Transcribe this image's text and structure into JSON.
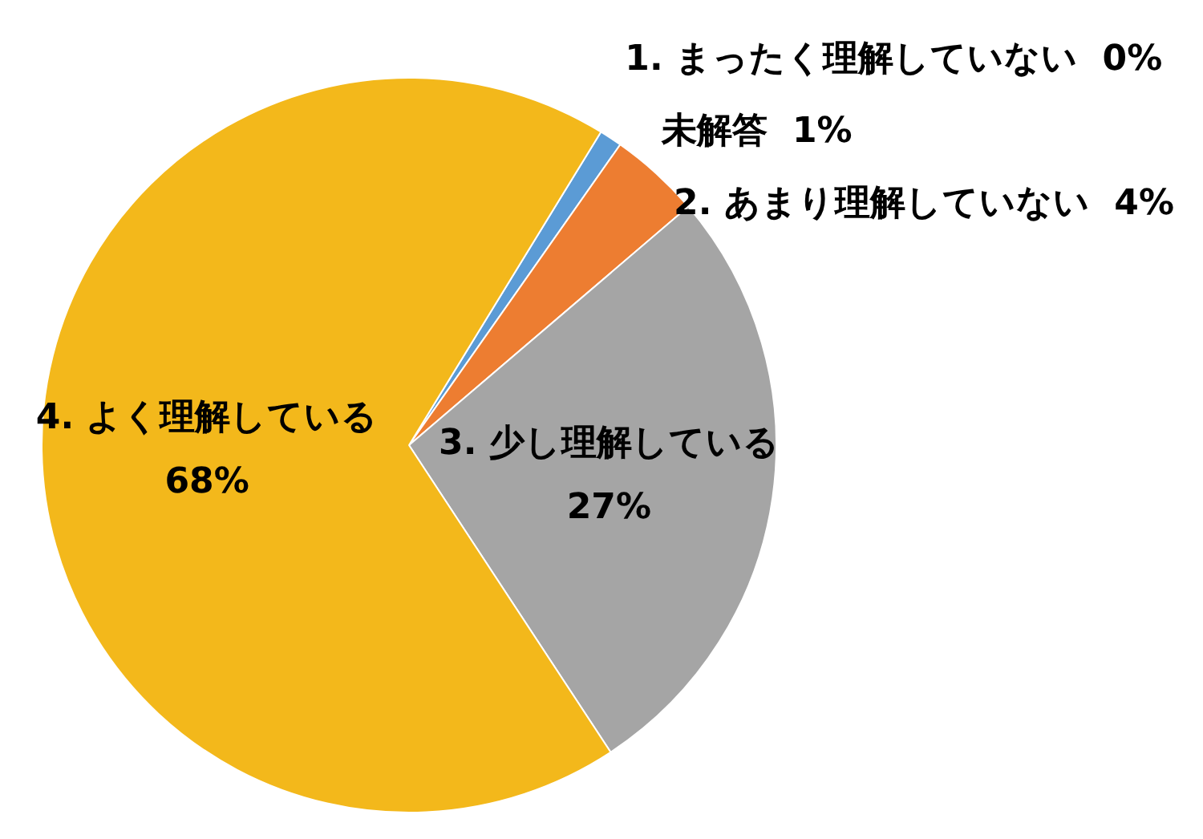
{
  "chart_data": {
    "type": "pie",
    "categories": [
      "1. まったく理解していない",
      "未解答",
      "2. あまり理解していない",
      "3. 少し理解している",
      "4. よく理解している"
    ],
    "values": [
      0,
      1,
      4,
      27,
      68
    ],
    "colors": [
      "#4472c4",
      "#5b9bd5",
      "#ed7d31",
      "#a5a5a5",
      "#f3b81b"
    ],
    "value_labels": [
      "0%",
      "1%",
      "4%",
      "27%",
      "68%"
    ],
    "legend": false
  }
}
